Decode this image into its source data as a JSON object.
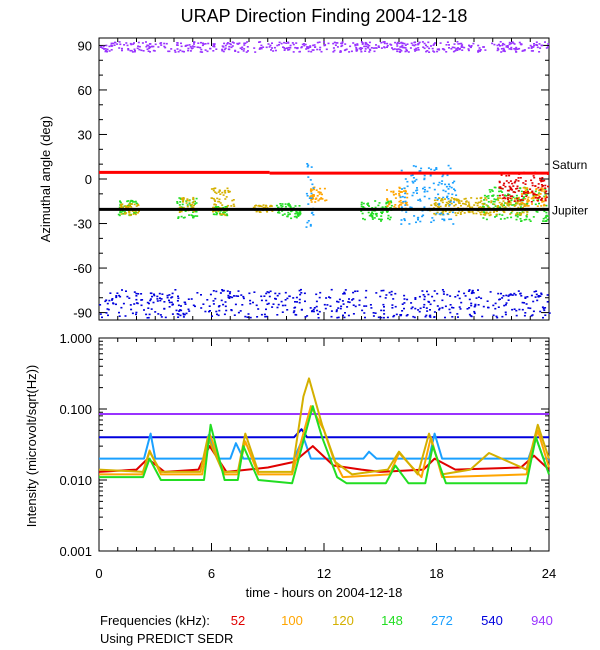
{
  "title": "URAP Direction Finding  2004-12-18",
  "xaxis": {
    "label": "time - hours on 2004-12-18",
    "range": [
      0,
      24
    ],
    "ticks": [
      "0",
      "6",
      "12",
      "18",
      "24"
    ]
  },
  "footer": {
    "freq_label": "Frequencies (kHz):",
    "freqs": [
      {
        "label": "52",
        "color": "#e00000"
      },
      {
        "label": "100",
        "color": "#ffa500"
      },
      {
        "label": "120",
        "color": "#d4b000"
      },
      {
        "label": "148",
        "color": "#22dd22"
      },
      {
        "label": "272",
        "color": "#1aa0ff"
      },
      {
        "label": "540",
        "color": "#0000dd"
      },
      {
        "label": "940",
        "color": "#9933ff"
      }
    ],
    "source": "Using PREDICT SEDR"
  },
  "chart_data": [
    {
      "type": "scatter",
      "ylabel": "Azimuthal angle (deg)",
      "xlim": [
        0,
        24
      ],
      "ylim": [
        -95,
        95
      ],
      "yticks": [
        "90",
        "60",
        "30",
        "0",
        "-30",
        "-60",
        "-90"
      ],
      "reference_lines": [
        {
          "name": "Saturn",
          "color": "#ff0000",
          "segments": [
            {
              "x": [
                0,
                9.1
              ],
              "y": 4.5
            },
            {
              "x": [
                9.1,
                24
              ],
              "y": 4.0
            }
          ]
        },
        {
          "name": "Jupiter",
          "color": "#000000",
          "segments": [
            {
              "x": [
                0,
                24
              ],
              "y": -20.5
            }
          ]
        }
      ],
      "series": [
        {
          "color": "#9933ff",
          "clusters": [
            {
              "x": [
                0,
                24
              ],
              "y": [
                86,
                93
              ]
            }
          ]
        },
        {
          "color": "#0000dd",
          "clusters": [
            {
              "x": [
                0,
                24
              ],
              "y": [
                -93,
                -74
              ]
            }
          ]
        },
        {
          "color": "#22dd22",
          "clusters": [
            {
              "x": [
                1.0,
                2.0
              ],
              "y": [
                -24,
                -14
              ]
            },
            {
              "x": [
                4.1,
                5.2
              ],
              "y": [
                -26,
                -12
              ]
            },
            {
              "x": [
                6.0,
                6.8
              ],
              "y": [
                -24,
                -18
              ]
            },
            {
              "x": [
                9.4,
                10.7
              ],
              "y": [
                -26,
                -16
              ]
            },
            {
              "x": [
                13.9,
                15.6
              ],
              "y": [
                -28,
                -14
              ]
            },
            {
              "x": [
                20.4,
                23.9
              ],
              "y": [
                -28,
                -5
              ]
            }
          ]
        },
        {
          "color": "#d4b000",
          "clusters": [
            {
              "x": [
                1.1,
                2.1
              ],
              "y": [
                -24,
                -16
              ]
            },
            {
              "x": [
                4.2,
                5.1
              ],
              "y": [
                -22,
                -12
              ]
            },
            {
              "x": [
                5.9,
                7.2
              ],
              "y": [
                -24,
                -5
              ]
            },
            {
              "x": [
                8.2,
                9.2
              ],
              "y": [
                -22,
                -17
              ]
            },
            {
              "x": [
                17.6,
                22.8
              ],
              "y": [
                -24,
                -12
              ]
            }
          ]
        },
        {
          "color": "#ffa500",
          "clusters": [
            {
              "x": [
                11.2,
                12.1
              ],
              "y": [
                -15,
                -5
              ]
            },
            {
              "x": [
                15.3,
                16.4
              ],
              "y": [
                -20,
                -5
              ]
            },
            {
              "x": [
                22.5,
                23.8
              ],
              "y": [
                -18,
                -5
              ]
            }
          ]
        },
        {
          "color": "#e00000",
          "clusters": [
            {
              "x": [
                21.3,
                23.9
              ],
              "y": [
                -15,
                5
              ]
            }
          ]
        },
        {
          "color": "#1aa0ff",
          "clusters": [
            {
              "x": [
                11.0,
                11.4
              ],
              "y": [
                -32,
                15
              ]
            },
            {
              "x": [
                16.0,
                19.0
              ],
              "y": [
                -30,
                10
              ]
            }
          ]
        }
      ]
    },
    {
      "type": "line",
      "ylabel": "Intensity (microvolt/sqrt(Hz))",
      "xlim": [
        0,
        24
      ],
      "yscale": "log",
      "ylim": [
        0.001,
        1.0
      ],
      "yticks": [
        "1.000",
        "0.100",
        "0.010",
        "0.001"
      ],
      "series": [
        {
          "color": "#9933ff",
          "x": [
            0,
            8.9,
            9.1,
            24
          ],
          "y": [
            0.085,
            0.085,
            0.085,
            0.085
          ]
        },
        {
          "color": "#0000dd",
          "x": [
            0,
            10.4,
            10.8,
            11.1,
            11.5,
            24
          ],
          "y": [
            0.04,
            0.04,
            0.052,
            0.04,
            0.04,
            0.04
          ]
        },
        {
          "color": "#1aa0ff",
          "x": [
            0,
            2.4,
            2.75,
            3.0,
            5.6,
            5.85,
            6.3,
            7.0,
            7.3,
            7.7,
            10.4,
            10.9,
            11.3,
            14.1,
            14.4,
            14.8,
            17.6,
            17.9,
            18.3,
            22.9,
            23.3,
            23.7,
            24
          ],
          "y": [
            0.02,
            0.02,
            0.045,
            0.02,
            0.02,
            0.043,
            0.02,
            0.02,
            0.033,
            0.02,
            0.02,
            0.04,
            0.02,
            0.02,
            0.025,
            0.02,
            0.02,
            0.045,
            0.02,
            0.02,
            0.04,
            0.02,
            0.02
          ]
        },
        {
          "color": "#e00000",
          "x": [
            0,
            2.0,
            2.6,
            3.5,
            5.3,
            5.9,
            6.8,
            9.0,
            10.4,
            11.4,
            12.5,
            14.0,
            15.0,
            17.3,
            17.9,
            19.0,
            22.5,
            23.2,
            24
          ],
          "y": [
            0.013,
            0.014,
            0.02,
            0.013,
            0.014,
            0.03,
            0.013,
            0.015,
            0.018,
            0.03,
            0.016,
            0.014,
            0.013,
            0.014,
            0.02,
            0.014,
            0.015,
            0.022,
            0.014
          ]
        },
        {
          "color": "#ffa500",
          "x": [
            0,
            2.3,
            2.7,
            3.3,
            5.5,
            5.9,
            6.7,
            7.4,
            7.8,
            8.5,
            10.3,
            11.3,
            12.0,
            12.5,
            13.0,
            15.5,
            16.0,
            17.2,
            17.7,
            18.3,
            22.8,
            23.4,
            24
          ],
          "y": [
            0.012,
            0.012,
            0.026,
            0.012,
            0.012,
            0.045,
            0.012,
            0.012,
            0.035,
            0.012,
            0.012,
            0.11,
            0.05,
            0.02,
            0.011,
            0.012,
            0.024,
            0.011,
            0.04,
            0.011,
            0.012,
            0.05,
            0.015
          ]
        },
        {
          "color": "#d4b000",
          "x": [
            0,
            2.35,
            2.7,
            3.3,
            5.4,
            5.8,
            6.6,
            7.4,
            7.8,
            8.5,
            10.3,
            10.9,
            11.2,
            11.9,
            12.6,
            13.5,
            15.4,
            16.0,
            17.0,
            17.6,
            18.3,
            19.8,
            20.8,
            22.8,
            23.4,
            24
          ],
          "y": [
            0.014,
            0.013,
            0.025,
            0.013,
            0.013,
            0.04,
            0.013,
            0.013,
            0.045,
            0.013,
            0.013,
            0.15,
            0.27,
            0.06,
            0.018,
            0.012,
            0.014,
            0.025,
            0.012,
            0.045,
            0.012,
            0.014,
            0.024,
            0.014,
            0.06,
            0.02
          ]
        },
        {
          "color": "#22dd22",
          "x": [
            0,
            2.35,
            2.7,
            3.3,
            5.6,
            5.95,
            6.7,
            7.4,
            7.7,
            8.5,
            10.3,
            11.4,
            11.9,
            12.7,
            13.2,
            15.3,
            15.8,
            16.5,
            17.4,
            17.8,
            18.5,
            22.8,
            23.3,
            24
          ],
          "y": [
            0.011,
            0.011,
            0.02,
            0.01,
            0.01,
            0.06,
            0.01,
            0.01,
            0.03,
            0.01,
            0.009,
            0.11,
            0.04,
            0.011,
            0.009,
            0.009,
            0.016,
            0.009,
            0.009,
            0.03,
            0.009,
            0.009,
            0.04,
            0.012
          ]
        }
      ]
    }
  ]
}
